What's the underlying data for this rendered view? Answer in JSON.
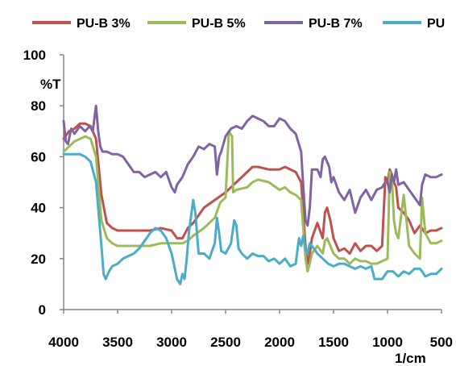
{
  "chart_data": {
    "type": "line",
    "title": "",
    "xlabel": "1/cm",
    "ylabel": "%T",
    "xlim": [
      4000,
      500
    ],
    "ylim": [
      0,
      100
    ],
    "x_reversed": true,
    "x_ticks": [
      4000,
      3500,
      3000,
      2500,
      2000,
      1500,
      1000,
      500
    ],
    "y_ticks": [
      0,
      20,
      40,
      60,
      80,
      100
    ],
    "grid": false,
    "legend_position": "top",
    "series": [
      {
        "name": "PU-B 3%",
        "color": "#C0504D",
        "points": [
          [
            4000,
            67
          ],
          [
            3950,
            70
          ],
          [
            3900,
            71
          ],
          [
            3850,
            73
          ],
          [
            3800,
            73
          ],
          [
            3750,
            72
          ],
          [
            3700,
            67
          ],
          [
            3650,
            45
          ],
          [
            3600,
            34
          ],
          [
            3550,
            32
          ],
          [
            3500,
            31
          ],
          [
            3400,
            31
          ],
          [
            3300,
            31
          ],
          [
            3200,
            31
          ],
          [
            3100,
            32
          ],
          [
            3000,
            31
          ],
          [
            2950,
            28
          ],
          [
            2900,
            28
          ],
          [
            2850,
            32
          ],
          [
            2800,
            34
          ],
          [
            2700,
            40
          ],
          [
            2600,
            43
          ],
          [
            2500,
            46
          ],
          [
            2450,
            48
          ],
          [
            2400,
            50
          ],
          [
            2300,
            54
          ],
          [
            2250,
            56
          ],
          [
            2200,
            56
          ],
          [
            2100,
            55
          ],
          [
            2000,
            55
          ],
          [
            1950,
            56
          ],
          [
            1900,
            55
          ],
          [
            1850,
            54
          ],
          [
            1800,
            50
          ],
          [
            1760,
            25
          ],
          [
            1740,
            18
          ],
          [
            1720,
            22
          ],
          [
            1700,
            28
          ],
          [
            1650,
            34
          ],
          [
            1600,
            28
          ],
          [
            1580,
            38
          ],
          [
            1560,
            40
          ],
          [
            1530,
            35
          ],
          [
            1500,
            28
          ],
          [
            1450,
            23
          ],
          [
            1400,
            24
          ],
          [
            1350,
            22
          ],
          [
            1300,
            26
          ],
          [
            1250,
            23
          ],
          [
            1200,
            25
          ],
          [
            1150,
            25
          ],
          [
            1100,
            23
          ],
          [
            1050,
            25
          ],
          [
            1020,
            52
          ],
          [
            1000,
            50
          ],
          [
            980,
            55
          ],
          [
            960,
            53
          ],
          [
            940,
            50
          ],
          [
            920,
            48
          ],
          [
            900,
            40
          ],
          [
            850,
            38
          ],
          [
            800,
            35
          ],
          [
            750,
            30
          ],
          [
            700,
            33
          ],
          [
            650,
            30
          ],
          [
            600,
            31
          ],
          [
            550,
            31
          ],
          [
            500,
            32
          ]
        ]
      },
      {
        "name": "PU-B 5%",
        "color": "#9BBB59",
        "points": [
          [
            4000,
            62
          ],
          [
            3950,
            64
          ],
          [
            3900,
            66
          ],
          [
            3850,
            67
          ],
          [
            3800,
            68
          ],
          [
            3750,
            67
          ],
          [
            3700,
            60
          ],
          [
            3650,
            35
          ],
          [
            3600,
            28
          ],
          [
            3550,
            26
          ],
          [
            3500,
            25
          ],
          [
            3400,
            25
          ],
          [
            3300,
            25
          ],
          [
            3200,
            25
          ],
          [
            3100,
            26
          ],
          [
            3000,
            26
          ],
          [
            2950,
            26
          ],
          [
            2900,
            26
          ],
          [
            2850,
            27
          ],
          [
            2800,
            29
          ],
          [
            2700,
            32
          ],
          [
            2600,
            36
          ],
          [
            2550,
            42
          ],
          [
            2500,
            44
          ],
          [
            2470,
            70
          ],
          [
            2440,
            68
          ],
          [
            2430,
            46
          ],
          [
            2400,
            47
          ],
          [
            2300,
            48
          ],
          [
            2250,
            50
          ],
          [
            2200,
            51
          ],
          [
            2100,
            50
          ],
          [
            2000,
            47
          ],
          [
            1950,
            48
          ],
          [
            1900,
            46
          ],
          [
            1850,
            45
          ],
          [
            1800,
            43
          ],
          [
            1760,
            20
          ],
          [
            1740,
            15
          ],
          [
            1720,
            18
          ],
          [
            1700,
            22
          ],
          [
            1650,
            25
          ],
          [
            1600,
            22
          ],
          [
            1580,
            27
          ],
          [
            1560,
            28
          ],
          [
            1500,
            22
          ],
          [
            1450,
            20
          ],
          [
            1400,
            20
          ],
          [
            1350,
            18
          ],
          [
            1300,
            20
          ],
          [
            1250,
            19
          ],
          [
            1200,
            19
          ],
          [
            1150,
            18
          ],
          [
            1100,
            18
          ],
          [
            1050,
            19
          ],
          [
            1000,
            20
          ],
          [
            980,
            54
          ],
          [
            960,
            52
          ],
          [
            940,
            35
          ],
          [
            920,
            30
          ],
          [
            900,
            28
          ],
          [
            850,
            45
          ],
          [
            800,
            25
          ],
          [
            750,
            22
          ],
          [
            700,
            20
          ],
          [
            680,
            44
          ],
          [
            650,
            30
          ],
          [
            600,
            26
          ],
          [
            550,
            26
          ],
          [
            500,
            27
          ]
        ]
      },
      {
        "name": "PU-B 7%",
        "color": "#8064A2",
        "points": [
          [
            4000,
            74
          ],
          [
            3980,
            66
          ],
          [
            3960,
            65
          ],
          [
            3930,
            71
          ],
          [
            3900,
            69
          ],
          [
            3850,
            72
          ],
          [
            3800,
            70
          ],
          [
            3760,
            72
          ],
          [
            3730,
            70
          ],
          [
            3700,
            80
          ],
          [
            3680,
            70
          ],
          [
            3660,
            64
          ],
          [
            3640,
            62
          ],
          [
            3600,
            62
          ],
          [
            3550,
            61
          ],
          [
            3500,
            61
          ],
          [
            3450,
            60
          ],
          [
            3400,
            57
          ],
          [
            3350,
            54
          ],
          [
            3300,
            54
          ],
          [
            3250,
            52
          ],
          [
            3200,
            53
          ],
          [
            3150,
            54
          ],
          [
            3100,
            52
          ],
          [
            3050,
            54
          ],
          [
            3000,
            48
          ],
          [
            2970,
            46
          ],
          [
            2950,
            49
          ],
          [
            2900,
            52
          ],
          [
            2850,
            57
          ],
          [
            2800,
            60
          ],
          [
            2750,
            64
          ],
          [
            2700,
            63
          ],
          [
            2650,
            65
          ],
          [
            2600,
            64
          ],
          [
            2580,
            53
          ],
          [
            2560,
            60
          ],
          [
            2540,
            62
          ],
          [
            2500,
            68
          ],
          [
            2450,
            71
          ],
          [
            2400,
            72
          ],
          [
            2350,
            71
          ],
          [
            2300,
            74
          ],
          [
            2250,
            76
          ],
          [
            2200,
            75
          ],
          [
            2150,
            74
          ],
          [
            2100,
            72
          ],
          [
            2050,
            72
          ],
          [
            2000,
            75
          ],
          [
            1950,
            74
          ],
          [
            1900,
            71
          ],
          [
            1850,
            69
          ],
          [
            1800,
            62
          ],
          [
            1780,
            48
          ],
          [
            1760,
            35
          ],
          [
            1740,
            33
          ],
          [
            1720,
            40
          ],
          [
            1700,
            55
          ],
          [
            1680,
            55
          ],
          [
            1650,
            55
          ],
          [
            1620,
            52
          ],
          [
            1600,
            59
          ],
          [
            1580,
            60
          ],
          [
            1560,
            58
          ],
          [
            1540,
            56
          ],
          [
            1520,
            50
          ],
          [
            1500,
            52
          ],
          [
            1450,
            46
          ],
          [
            1400,
            43
          ],
          [
            1350,
            47
          ],
          [
            1300,
            38
          ],
          [
            1250,
            44
          ],
          [
            1200,
            47
          ],
          [
            1150,
            43
          ],
          [
            1100,
            47
          ],
          [
            1050,
            48
          ],
          [
            1020,
            50
          ],
          [
            1000,
            50
          ],
          [
            980,
            46
          ],
          [
            960,
            53
          ],
          [
            940,
            50
          ],
          [
            920,
            55
          ],
          [
            900,
            49
          ],
          [
            850,
            50
          ],
          [
            800,
            47
          ],
          [
            750,
            44
          ],
          [
            700,
            41
          ],
          [
            680,
            49
          ],
          [
            650,
            53
          ],
          [
            600,
            52
          ],
          [
            550,
            52
          ],
          [
            500,
            53
          ]
        ]
      },
      {
        "name": "PU",
        "color": "#4BACC6",
        "points": [
          [
            4000,
            61
          ],
          [
            3950,
            61
          ],
          [
            3900,
            61
          ],
          [
            3850,
            61
          ],
          [
            3800,
            60
          ],
          [
            3750,
            58
          ],
          [
            3700,
            50
          ],
          [
            3650,
            25
          ],
          [
            3630,
            14
          ],
          [
            3610,
            12
          ],
          [
            3580,
            15
          ],
          [
            3550,
            17
          ],
          [
            3500,
            18
          ],
          [
            3450,
            20
          ],
          [
            3400,
            21
          ],
          [
            3350,
            22
          ],
          [
            3300,
            24
          ],
          [
            3250,
            27
          ],
          [
            3200,
            30
          ],
          [
            3150,
            32
          ],
          [
            3100,
            31
          ],
          [
            3050,
            28
          ],
          [
            3000,
            22
          ],
          [
            2950,
            12
          ],
          [
            2920,
            10
          ],
          [
            2900,
            14
          ],
          [
            2880,
            12
          ],
          [
            2860,
            20
          ],
          [
            2840,
            30
          ],
          [
            2800,
            43
          ],
          [
            2780,
            38
          ],
          [
            2750,
            22
          ],
          [
            2700,
            22
          ],
          [
            2650,
            20
          ],
          [
            2600,
            26
          ],
          [
            2580,
            36
          ],
          [
            2560,
            30
          ],
          [
            2540,
            23
          ],
          [
            2500,
            22
          ],
          [
            2450,
            26
          ],
          [
            2420,
            35
          ],
          [
            2400,
            33
          ],
          [
            2380,
            24
          ],
          [
            2350,
            22
          ],
          [
            2300,
            20
          ],
          [
            2250,
            22
          ],
          [
            2200,
            21
          ],
          [
            2150,
            21
          ],
          [
            2100,
            19
          ],
          [
            2050,
            20
          ],
          [
            2000,
            18
          ],
          [
            1950,
            20
          ],
          [
            1900,
            17
          ],
          [
            1850,
            18
          ],
          [
            1820,
            28
          ],
          [
            1800,
            25
          ],
          [
            1780,
            29
          ],
          [
            1760,
            24
          ],
          [
            1740,
            22
          ],
          [
            1720,
            26
          ],
          [
            1700,
            25
          ],
          [
            1650,
            22
          ],
          [
            1600,
            20
          ],
          [
            1550,
            18
          ],
          [
            1500,
            17
          ],
          [
            1450,
            18
          ],
          [
            1400,
            18
          ],
          [
            1350,
            17
          ],
          [
            1300,
            16
          ],
          [
            1250,
            17
          ],
          [
            1200,
            16
          ],
          [
            1150,
            17
          ],
          [
            1120,
            12
          ],
          [
            1100,
            12
          ],
          [
            1050,
            12
          ],
          [
            1000,
            15
          ],
          [
            950,
            15
          ],
          [
            900,
            13
          ],
          [
            850,
            15
          ],
          [
            800,
            14
          ],
          [
            750,
            16
          ],
          [
            700,
            16
          ],
          [
            680,
            15
          ],
          [
            650,
            13
          ],
          [
            600,
            14
          ],
          [
            550,
            14
          ],
          [
            500,
            16
          ]
        ]
      }
    ]
  }
}
